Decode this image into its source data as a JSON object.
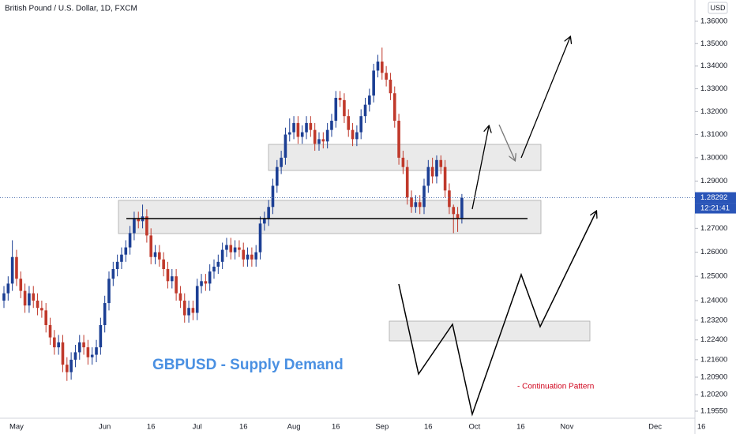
{
  "chart_data": {
    "type": "candlestick",
    "title": "British Pound / U.S. Dollar, 1D, FXCM",
    "currency": "USD",
    "log_scale": true,
    "grid": false,
    "up_color": "#1c3f94",
    "down_color": "#c0392b",
    "categories": [
      null,
      null,
      null,
      "May",
      null,
      null,
      null,
      null,
      null,
      null,
      null,
      null,
      null,
      null,
      null,
      null,
      null,
      null,
      null,
      null,
      null,
      null,
      null,
      null,
      "Jun",
      null,
      null,
      null,
      null,
      null,
      null,
      null,
      null,
      null,
      null,
      "16",
      null,
      null,
      null,
      null,
      null,
      null,
      null,
      null,
      null,
      null,
      "Jul",
      null,
      null,
      null,
      null,
      null,
      null,
      null,
      null,
      null,
      null,
      "16",
      null,
      null,
      null,
      null,
      null,
      null,
      null,
      null,
      null,
      null,
      null,
      "Aug",
      null,
      null,
      null,
      null,
      null,
      null,
      null,
      null,
      null,
      "16",
      null,
      null,
      null,
      null,
      null,
      null,
      null,
      null,
      null,
      null,
      "Sep",
      null,
      null,
      null,
      null,
      null,
      null,
      null,
      null,
      null,
      null,
      "16",
      null,
      null,
      null,
      null,
      null,
      null,
      null,
      null
    ],
    "future_labels": [
      "Oct",
      "16",
      "Nov",
      "Dec",
      "16"
    ],
    "open": [
      1.24,
      1.243,
      1.247,
      1.258,
      1.249,
      1.244,
      1.238,
      1.243,
      1.24,
      1.237,
      1.236,
      1.23,
      1.225,
      1.221,
      1.223,
      1.214,
      1.211,
      1.216,
      1.219,
      1.223,
      1.221,
      1.217,
      1.218,
      1.221,
      1.23,
      1.239,
      1.249,
      1.253,
      1.256,
      1.259,
      1.262,
      1.268,
      1.274,
      1.273,
      1.275,
      1.267,
      1.258,
      1.26,
      1.257,
      1.253,
      1.248,
      1.25,
      1.243,
      1.24,
      1.234,
      1.237,
      1.235,
      1.246,
      1.248,
      1.247,
      1.252,
      1.254,
      1.256,
      1.261,
      1.263,
      1.26,
      1.262,
      1.261,
      1.257,
      1.259,
      1.257,
      1.26,
      1.272,
      1.274,
      1.279,
      1.288,
      1.296,
      1.3,
      1.31,
      1.311,
      1.315,
      1.309,
      1.311,
      1.315,
      1.312,
      1.306,
      1.308,
      1.307,
      1.312,
      1.316,
      1.326,
      1.325,
      1.318,
      1.312,
      1.308,
      1.311,
      1.318,
      1.323,
      1.327,
      1.338,
      1.342,
      1.337,
      1.334,
      1.328,
      1.316,
      1.3,
      1.296,
      1.283,
      1.279,
      1.281,
      1.279,
      1.288,
      1.296,
      1.292,
      1.299,
      1.296,
      1.286,
      1.279,
      1.276,
      1.274
    ],
    "high": [
      1.246,
      1.25,
      1.265,
      1.261,
      1.252,
      1.247,
      1.246,
      1.246,
      1.243,
      1.24,
      1.239,
      1.233,
      1.228,
      1.226,
      1.226,
      1.217,
      1.219,
      1.222,
      1.226,
      1.226,
      1.224,
      1.221,
      1.224,
      1.233,
      1.242,
      1.252,
      1.256,
      1.259,
      1.262,
      1.265,
      1.271,
      1.277,
      1.277,
      1.28,
      1.278,
      1.27,
      1.263,
      1.263,
      1.26,
      1.256,
      1.253,
      1.253,
      1.246,
      1.243,
      1.24,
      1.24,
      1.249,
      1.251,
      1.251,
      1.255,
      1.257,
      1.259,
      1.264,
      1.266,
      1.266,
      1.265,
      1.265,
      1.264,
      1.262,
      1.262,
      1.263,
      1.275,
      1.277,
      1.282,
      1.291,
      1.299,
      1.303,
      1.313,
      1.317,
      1.318,
      1.318,
      1.314,
      1.318,
      1.318,
      1.315,
      1.311,
      1.311,
      1.315,
      1.319,
      1.329,
      1.329,
      1.328,
      1.321,
      1.315,
      1.314,
      1.321,
      1.326,
      1.33,
      1.341,
      1.345,
      1.3482,
      1.34,
      1.337,
      1.331,
      1.319,
      1.303,
      1.299,
      1.286,
      1.284,
      1.284,
      1.291,
      1.299,
      1.3,
      1.301,
      1.301,
      1.299,
      1.289,
      1.28,
      1.279,
      1.2845
    ],
    "low": [
      1.237,
      1.24,
      1.244,
      1.246,
      1.241,
      1.235,
      1.235,
      1.237,
      1.234,
      1.233,
      1.227,
      1.222,
      1.218,
      1.218,
      1.211,
      1.2075,
      1.208,
      1.213,
      1.216,
      1.218,
      1.214,
      1.214,
      1.215,
      1.218,
      1.227,
      1.236,
      1.246,
      1.25,
      1.253,
      1.256,
      1.259,
      1.265,
      1.27,
      1.27,
      1.264,
      1.255,
      1.255,
      1.254,
      1.25,
      1.245,
      1.245,
      1.24,
      1.237,
      1.231,
      1.231,
      1.232,
      1.232,
      1.243,
      1.244,
      1.244,
      1.249,
      1.251,
      1.253,
      1.258,
      1.257,
      1.257,
      1.258,
      1.254,
      1.254,
      1.254,
      1.254,
      1.257,
      1.269,
      1.271,
      1.276,
      1.285,
      1.293,
      1.297,
      1.307,
      1.308,
      1.306,
      1.306,
      1.308,
      1.309,
      1.303,
      1.303,
      1.304,
      1.304,
      1.309,
      1.313,
      1.322,
      1.315,
      1.309,
      1.305,
      1.305,
      1.308,
      1.315,
      1.32,
      1.324,
      1.335,
      1.334,
      1.331,
      1.325,
      1.313,
      1.297,
      1.293,
      1.28,
      1.2765,
      1.2765,
      1.276,
      1.276,
      1.285,
      1.289,
      1.289,
      1.293,
      1.283,
      1.276,
      1.268,
      1.2685,
      1.272
    ],
    "close": [
      1.243,
      1.247,
      1.258,
      1.249,
      1.244,
      1.238,
      1.243,
      1.24,
      1.237,
      1.236,
      1.23,
      1.225,
      1.221,
      1.223,
      1.214,
      1.211,
      1.216,
      1.219,
      1.223,
      1.221,
      1.217,
      1.218,
      1.221,
      1.23,
      1.239,
      1.249,
      1.253,
      1.256,
      1.259,
      1.262,
      1.268,
      1.274,
      1.273,
      1.275,
      1.267,
      1.258,
      1.26,
      1.257,
      1.253,
      1.248,
      1.25,
      1.243,
      1.24,
      1.234,
      1.237,
      1.235,
      1.246,
      1.248,
      1.247,
      1.252,
      1.254,
      1.256,
      1.261,
      1.263,
      1.26,
      1.262,
      1.261,
      1.257,
      1.259,
      1.257,
      1.26,
      1.272,
      1.274,
      1.279,
      1.288,
      1.296,
      1.3,
      1.31,
      1.311,
      1.315,
      1.309,
      1.311,
      1.315,
      1.312,
      1.306,
      1.308,
      1.307,
      1.312,
      1.316,
      1.326,
      1.325,
      1.318,
      1.312,
      1.308,
      1.311,
      1.318,
      1.323,
      1.327,
      1.338,
      1.342,
      1.337,
      1.334,
      1.328,
      1.316,
      1.3,
      1.296,
      1.283,
      1.279,
      1.281,
      1.279,
      1.288,
      1.296,
      1.292,
      1.299,
      1.296,
      1.286,
      1.279,
      1.276,
      1.274,
      1.2829
    ],
    "ylim": [
      1.1927,
      1.3696
    ],
    "yticks": [
      {
        "value": 1.36,
        "label": "1.36000"
      },
      {
        "value": 1.35,
        "label": "1.35000"
      },
      {
        "value": 1.34,
        "label": "1.34000"
      },
      {
        "value": 1.33,
        "label": "1.33000"
      },
      {
        "value": 1.32,
        "label": "1.32000"
      },
      {
        "value": 1.31,
        "label": "1.31000"
      },
      {
        "value": 1.3,
        "label": "1.30000"
      },
      {
        "value": 1.29,
        "label": "1.29000"
      },
      {
        "value": 1.27,
        "label": "1.27000"
      },
      {
        "value": 1.26,
        "label": "1.26000"
      },
      {
        "value": 1.25,
        "label": "1.25000"
      },
      {
        "value": 1.24,
        "label": "1.24000"
      },
      {
        "value": 1.232,
        "label": "1.23200"
      },
      {
        "value": 1.224,
        "label": "1.22400"
      },
      {
        "value": 1.216,
        "label": "1.21600"
      },
      {
        "value": 1.209,
        "label": "1.20900"
      },
      {
        "value": 1.202,
        "label": "1.20200"
      },
      {
        "value": 1.1955,
        "label": "1.19550"
      }
    ],
    "last_price": 1.28292,
    "countdown": "12:21:41",
    "annotations": [
      "GBPUSD - Supply Demand",
      "- Continuation Pattern"
    ]
  }
}
